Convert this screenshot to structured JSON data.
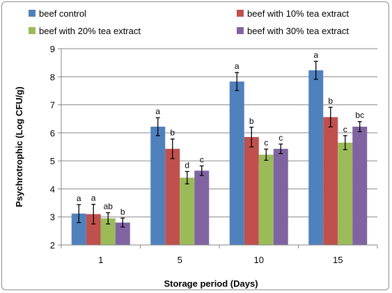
{
  "chart_data": {
    "type": "bar",
    "title": "",
    "xlabel": "Storage period (Days)",
    "ylabel": "Psychrotrophic (Log CFU/g)",
    "ylim": [
      2,
      9
    ],
    "yticks": [
      "2",
      "3",
      "4",
      "5",
      "6",
      "7",
      "8",
      "9"
    ],
    "categories": [
      "1",
      "5",
      "10",
      "15"
    ],
    "grid": "horizontal",
    "legend_position": "top",
    "error_bars": true,
    "series": [
      {
        "name": "beef control",
        "color": "#4F81BD",
        "values": [
          3.12,
          6.22,
          7.83,
          8.23
        ],
        "errors": [
          0.32,
          0.32,
          0.32,
          0.32
        ],
        "letters": [
          "a",
          "a",
          "a",
          "a"
        ]
      },
      {
        "name": "beef with 10% tea extract",
        "color": "#C0504D",
        "values": [
          3.1,
          5.43,
          5.85,
          6.56
        ],
        "errors": [
          0.35,
          0.35,
          0.35,
          0.35
        ],
        "letters": [
          "a",
          "b",
          "b",
          "b"
        ]
      },
      {
        "name": "beef with 20% tea extract",
        "color": "#9BBB59",
        "values": [
          2.95,
          4.4,
          5.22,
          5.65
        ],
        "errors": [
          0.2,
          0.22,
          0.2,
          0.25
        ],
        "letters": [
          "ab",
          "d",
          "c",
          "c"
        ]
      },
      {
        "name": "beef with 30% tea extract",
        "color": "#8064A2",
        "values": [
          2.8,
          4.65,
          5.43,
          6.22
        ],
        "errors": [
          0.16,
          0.17,
          0.17,
          0.18
        ],
        "letters": [
          "b",
          "c",
          "c",
          "bc"
        ]
      }
    ]
  }
}
